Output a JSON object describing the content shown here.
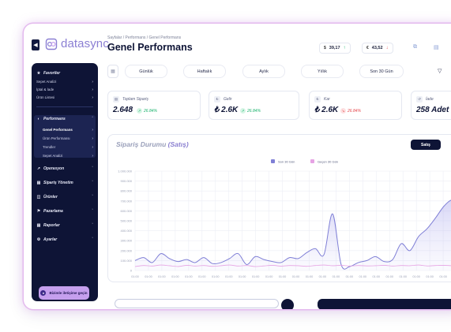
{
  "app": {
    "brand": "datasync"
  },
  "breadcrumb": "Sayfalar / Performans / Genel Performans",
  "page_title": "Genel Performans",
  "rates": [
    {
      "symbol": "$",
      "value": "39,17",
      "trend": "up"
    },
    {
      "symbol": "€",
      "value": "43,52",
      "trend": "down"
    }
  ],
  "sidebar": {
    "favorites": {
      "label": "Favoriler",
      "items": [
        "Sepet Analizi",
        "İptal & İade",
        "Ürün Listesi"
      ]
    },
    "performans": {
      "label": "Performans",
      "items": [
        "Genel Performans",
        "Ürün Performansı",
        "Trendler",
        "Sepet Analizi"
      ]
    },
    "sections": [
      "Operasyon",
      "Sipariş Yönetim",
      "Ürünler",
      "Pazarlama",
      "Raporlar",
      "Ayarlar"
    ],
    "contact_label": "Bizimle iletişime geçin"
  },
  "filters": [
    "Günlük",
    "Haftalık",
    "Aylık",
    "Yıllık",
    "Son 30 Gün"
  ],
  "stats": [
    {
      "label": "Toplam Sipariş",
      "value": "2.648",
      "change": "26.84%",
      "trend": "up"
    },
    {
      "label": "Gelir",
      "value": "₺ 2.6K",
      "change": "26.84%",
      "trend": "up"
    },
    {
      "label": "Kar",
      "value": "₺ 2.6K",
      "change": "26.84%",
      "trend": "down"
    },
    {
      "label": "İade",
      "value": "258 Adet",
      "change": "",
      "trend": ""
    }
  ],
  "chart_panel": {
    "title_prefix": "Sipariş Durumu",
    "title_suffix": "(Satış)",
    "active_button": "Satış"
  },
  "chart_data": {
    "type": "area",
    "ylim": [
      0,
      1000000
    ],
    "y_ticks": [
      "1.000.000",
      "900.000",
      "800.000",
      "700.000",
      "600.000",
      "500.000",
      "400.000",
      "300.000",
      "200.000",
      "100.000",
      "0"
    ],
    "x_tick_label": "01:00",
    "x_tick_count": 26,
    "grid": true,
    "legend": "top-center",
    "series": [
      {
        "name": "Son 30 Gün",
        "color": "#7f7fd6",
        "values": [
          100000,
          130000,
          80000,
          170000,
          120000,
          90000,
          110000,
          80000,
          130000,
          70000,
          80000,
          120000,
          170000,
          60000,
          140000,
          110000,
          90000,
          80000,
          130000,
          120000,
          180000,
          220000,
          160000,
          570000,
          60000,
          40000,
          80000,
          100000,
          140000,
          90000,
          110000,
          270000,
          200000,
          340000,
          420000,
          530000,
          650000,
          710000,
          640000,
          700000
        ]
      },
      {
        "name": "Geçen 30 Gün",
        "color": "#e6a3e4",
        "values": [
          40000,
          50000,
          45000,
          55000,
          48000,
          40000,
          52000,
          45000,
          50000,
          42000,
          48000,
          55000,
          45000,
          50000,
          40000,
          46000,
          52000,
          44000,
          50000,
          48000,
          42000,
          50000,
          55000,
          48000,
          52000,
          45000,
          50000,
          46000,
          48000,
          52000,
          45000,
          50000,
          48000,
          55000,
          46000,
          50000,
          52000,
          48000,
          50000,
          45000
        ]
      }
    ]
  }
}
